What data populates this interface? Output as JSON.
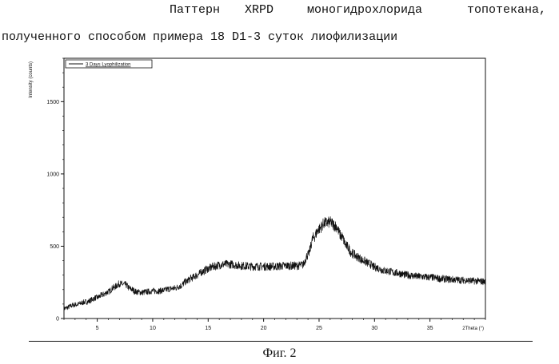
{
  "caption": {
    "line1_words": [
      "Паттерн",
      "XRPD",
      "моногидрохлорида",
      "топотекана,"
    ],
    "line2": "полученного способом примера 18 D1-3 суток лиофилизации"
  },
  "figure_label": "Фиг. 2",
  "chart_data": {
    "type": "line",
    "xlabel": "2Theta (°)",
    "ylabel": "Intensity (counts)",
    "xlim": [
      2,
      40
    ],
    "ylim": [
      0,
      1800
    ],
    "xticks": [
      5,
      10,
      15,
      20,
      25,
      30,
      35
    ],
    "yticks": [
      0,
      500,
      1000,
      1500
    ],
    "grid": false,
    "legend_position": "top-left",
    "series": [
      {
        "name": "3 Days Lyophilization",
        "color": "#111111",
        "x": [
          2,
          3,
          4,
          5,
          5.5,
          6,
          6.5,
          7,
          7.5,
          8,
          8.5,
          9,
          9.5,
          10,
          10.5,
          11,
          11.5,
          12,
          12.5,
          13,
          13.5,
          14,
          14.5,
          15,
          15.5,
          16,
          16.5,
          17,
          18,
          19,
          20,
          21,
          22,
          23,
          23.5,
          24,
          24.5,
          25,
          25.5,
          26,
          26.5,
          27,
          27.5,
          28,
          28.5,
          29,
          29.5,
          30,
          31,
          32,
          33,
          34,
          35,
          36,
          37,
          38,
          39,
          40
        ],
        "y": [
          70,
          95,
          115,
          145,
          165,
          185,
          215,
          240,
          235,
          205,
          185,
          180,
          185,
          190,
          190,
          195,
          205,
          210,
          225,
          255,
          280,
          300,
          325,
          345,
          360,
          370,
          375,
          375,
          365,
          360,
          360,
          360,
          365,
          365,
          370,
          440,
          560,
          620,
          660,
          665,
          640,
          570,
          500,
          450,
          425,
          400,
          380,
          355,
          330,
          315,
          300,
          290,
          285,
          275,
          270,
          265,
          260,
          255
        ]
      }
    ]
  }
}
